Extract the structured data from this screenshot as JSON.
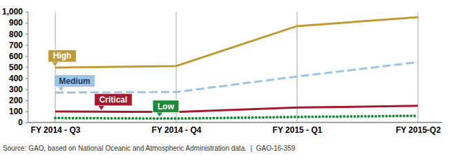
{
  "chart_data": {
    "type": "line",
    "categories": [
      "FY 2014 - Q3",
      "FY 2014 - Q4",
      "FY 2015 - Q1",
      "FY 2015-Q2"
    ],
    "series": [
      {
        "name": "High",
        "color": "#c09a35",
        "line_style": "solid",
        "values": [
          495,
          510,
          870,
          950
        ]
      },
      {
        "name": "Medium",
        "color": "#9dc3e6",
        "line_style": "dashed",
        "values": [
          270,
          275,
          415,
          545
        ]
      },
      {
        "name": "Critical",
        "color": "#a6192e",
        "line_style": "solid",
        "values": [
          100,
          95,
          135,
          150
        ]
      },
      {
        "name": "Low",
        "color": "#1e8a3c",
        "line_style": "dotted",
        "values": [
          40,
          35,
          50,
          60
        ]
      }
    ],
    "ylim": [
      0,
      1000
    ],
    "yticks": [
      0,
      100,
      200,
      300,
      400,
      500,
      600,
      700,
      800,
      900,
      {
        "value": 1000,
        "label": "1,000"
      }
    ],
    "grid": true,
    "source": "Source: GAO, based on National Oceanic and Atmospheric Administration data.  |  GAO-16-359"
  }
}
